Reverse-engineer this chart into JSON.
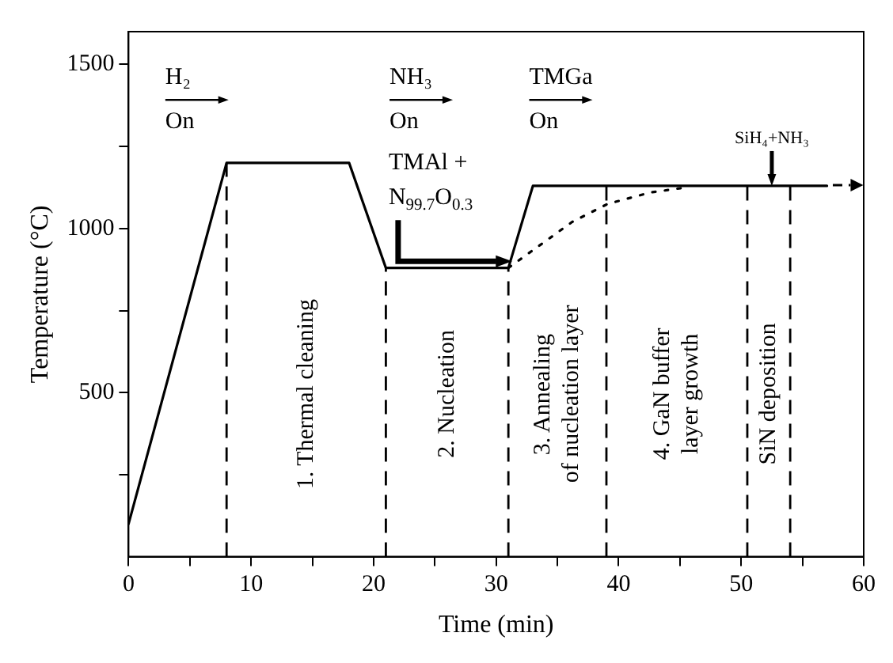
{
  "chart_data": {
    "type": "line",
    "xlabel": "Time (min)",
    "ylabel": "Temperature (°C)",
    "xlim": [
      0,
      60
    ],
    "ylim": [
      0,
      1600
    ],
    "xticks": [
      0,
      {
        "value": 5,
        "label": null
      },
      10,
      {
        "value": 15,
        "label": null
      },
      20,
      {
        "value": 25,
        "label": null
      },
      30,
      {
        "value": 35,
        "label": null
      },
      40,
      {
        "value": 45,
        "label": null
      },
      50,
      {
        "value": 55,
        "label": null
      },
      60
    ],
    "yticks": [
      {
        "value": 250,
        "label": null
      },
      500,
      {
        "value": 750,
        "label": null
      },
      1000,
      {
        "value": 1250,
        "label": null
      },
      1500
    ],
    "grid": false,
    "legend": false,
    "marker": "none",
    "series": [
      {
        "color": "#000000",
        "line_style": "solid",
        "x": [
          0,
          8,
          18,
          21,
          31,
          33,
          57
        ],
        "values": [
          100,
          1200,
          1200,
          880,
          880,
          1130,
          1130
        ]
      },
      {
        "color": "#000000",
        "line_style": "dotted",
        "x": [
          31,
          33.6,
          36.2,
          39.1,
          42.6,
          45.5
        ],
        "values": [
          880,
          950,
          1020,
          1075,
          1110,
          1125
        ]
      }
    ],
    "ref_lines": [
      {
        "axis": "x",
        "value": 8,
        "line_style": "dashed"
      },
      {
        "axis": "x",
        "value": 21,
        "line_style": "dashed"
      },
      {
        "axis": "x",
        "value": 31,
        "line_style": "dashed"
      },
      {
        "axis": "x",
        "value": 39,
        "line_style": "dashed"
      },
      {
        "axis": "x",
        "value": 50.5,
        "line_style": "dashed"
      },
      {
        "axis": "x",
        "value": 54,
        "line_style": "dashed"
      }
    ],
    "annotations": [
      "H₂\nOn",
      "NH₃\nOn",
      "TMGa\nOn",
      {
        "text": "TMAl +\nN$_{99.7}$O$_{0.3}$",
        "x": 22,
        "y": 900
      },
      {
        "text": "SiH₄+NH₃",
        "x": 52.5,
        "y": 1130
      },
      "1. Thermal cleaning",
      "2. Nucleation",
      "3. Annealing\nof nucleation layer",
      "4. GaN buffer\nlayer growth",
      "SiN deposition"
    ]
  }
}
